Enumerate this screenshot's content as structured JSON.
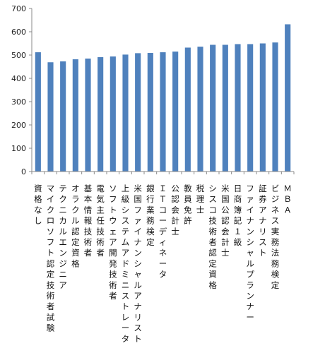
{
  "chart_data": {
    "type": "bar",
    "title": "",
    "xlabel": "",
    "ylabel": "",
    "ylim": [
      0,
      700
    ],
    "yticks": [
      0,
      100,
      200,
      300,
      400,
      500,
      600,
      700
    ],
    "grid": false,
    "legend": "none",
    "bar_color": "#4f81bd",
    "categories": [
      "資格なし",
      "マイクロソフト認定技術者試験",
      "テクニカルエンジニア",
      "オラクル認定資格",
      "基本情報技術者",
      "電気主任技術者",
      "ソフトウェア開発技術者",
      "上級システムアドミニストレータ",
      "米国ファイナンシャルアナリスト",
      "銀行業務検定",
      "ＩＴコーディネータ",
      "公認会計士",
      "教員免許",
      "税理士",
      "シスコ技術者認定資格",
      "米国公認会計士",
      "日商簿記１級",
      "ファイナンシャルプランナー",
      "証券アナリスト",
      "ビジネス実務法務検定",
      "ＭＢＡ"
    ],
    "values": [
      512,
      469,
      473,
      482,
      485,
      491,
      494,
      502,
      508,
      509,
      512,
      515,
      532,
      536,
      544,
      544,
      547,
      547,
      550,
      554,
      632
    ]
  }
}
